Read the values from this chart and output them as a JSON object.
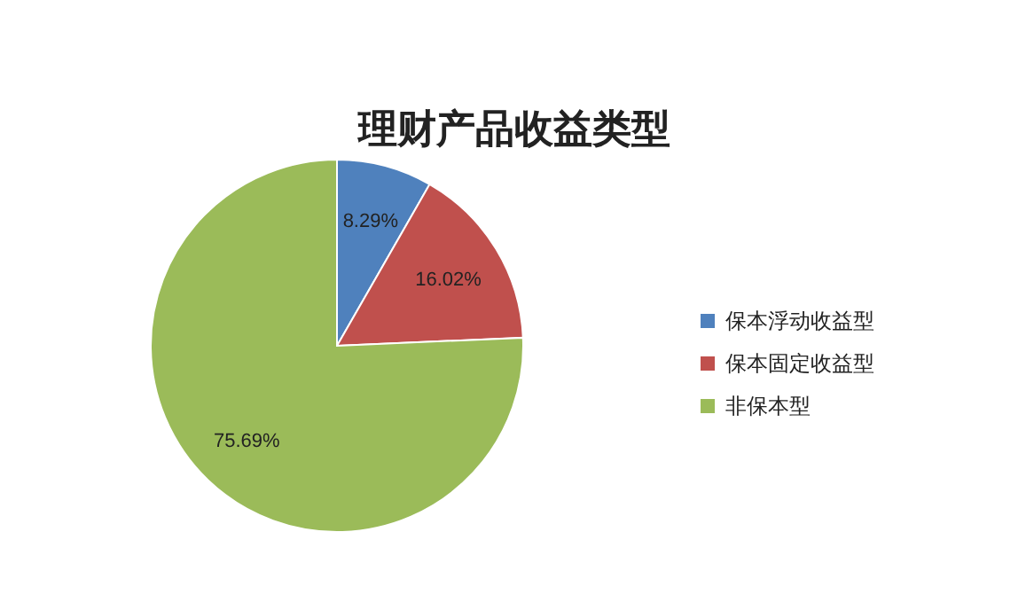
{
  "chart_data": {
    "type": "pie",
    "title": "理财产品收益类型",
    "categories": [
      "保本浮动收益型",
      "保本固定收益型",
      "非保本型"
    ],
    "values": [
      8.29,
      16.02,
      75.69
    ],
    "colors": [
      "#4f81bd",
      "#c0504d",
      "#9bbb59"
    ],
    "value_labels": [
      "8.29%",
      "16.02%",
      "75.69%"
    ],
    "legend": "right"
  }
}
